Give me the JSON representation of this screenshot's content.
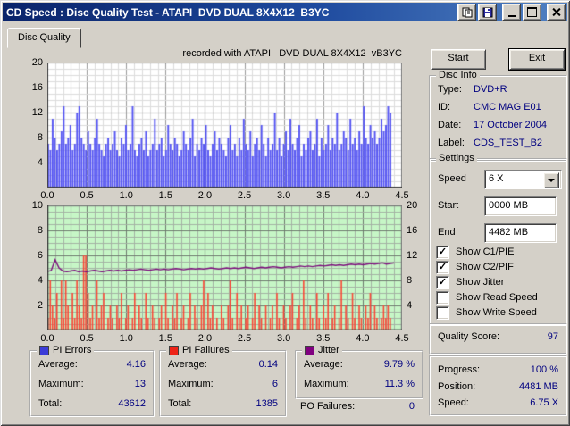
{
  "window": {
    "title": "CD Speed : Disc Quality Test - ATAPI  DVD DUAL 8X4X12  B3YC"
  },
  "tab": {
    "label": "Disc Quality"
  },
  "chart_header": "recorded with ATAPI   DVD DUAL 8X4X12  vB3YC",
  "buttons": {
    "start": "Start",
    "exit": "Exit"
  },
  "disc_info": {
    "title": "Disc Info",
    "rows": [
      {
        "label": "Type:",
        "value": "DVD+R"
      },
      {
        "label": "ID:",
        "value": "CMC MAG E01"
      },
      {
        "label": "Date:",
        "value": "17 October 2004"
      },
      {
        "label": "Label:",
        "value": "CDS_TEST_B2"
      }
    ]
  },
  "settings": {
    "title": "Settings",
    "speed_label": "Speed",
    "speed_value": "6 X",
    "start_label": "Start",
    "start_value": "0000 MB",
    "end_label": "End",
    "end_value": "4482 MB",
    "checkboxes": [
      {
        "label": "Show C1/PIE",
        "checked": true
      },
      {
        "label": "Show C2/PIF",
        "checked": true
      },
      {
        "label": "Show Jitter",
        "checked": true
      },
      {
        "label": "Show Read Speed",
        "checked": false
      },
      {
        "label": "Show Write Speed",
        "checked": false
      }
    ]
  },
  "quality": {
    "label": "Quality Score:",
    "value": "97"
  },
  "status": {
    "rows": [
      {
        "label": "Progress:",
        "value": "100 %"
      },
      {
        "label": "Position:",
        "value": "4481 MB"
      },
      {
        "label": "Speed:",
        "value": "6.75 X"
      }
    ]
  },
  "legends": {
    "pi_errors": {
      "title": "PI Errors",
      "swatch_color": "#3c3cd8",
      "rows": [
        {
          "label": "Average:",
          "value": "4.16"
        },
        {
          "label": "Maximum:",
          "value": "13"
        },
        {
          "label": "Total:",
          "value": "43612"
        }
      ]
    },
    "pi_failures": {
      "title": "PI Failures",
      "swatch_color": "#ee2418",
      "rows": [
        {
          "label": "Average:",
          "value": "0.14"
        },
        {
          "label": "Maximum:",
          "value": "6"
        },
        {
          "label": "Total:",
          "value": "1385"
        }
      ]
    },
    "jitter": {
      "title": "Jitter",
      "swatch_color": "#800080",
      "rows": [
        {
          "label": "Average:",
          "value": "9.79 %"
        },
        {
          "label": "Maximum:",
          "value": "11.3 %"
        }
      ]
    }
  },
  "po_failures": {
    "label": "PO Failures:",
    "value": "0"
  },
  "chart_data": [
    {
      "type": "bar",
      "title": "PI Errors (C1/PIE) vs disc capacity (GB)",
      "x_range": [
        0,
        4.5
      ],
      "y_range": [
        0,
        20
      ],
      "x_data_end": 4.37,
      "grid": "on",
      "bg_color": "#ffffff",
      "bar_color": "#5353f2",
      "xticks": [
        "0.0",
        "0.5",
        "1.0",
        "1.5",
        "2.0",
        "2.5",
        "3.0",
        "3.5",
        "4.0",
        "4.5"
      ],
      "yticks": [
        "20",
        "16",
        "12",
        "8",
        "4"
      ],
      "values": [
        7,
        6,
        11,
        8,
        6,
        7,
        9,
        13,
        7,
        8,
        10,
        6,
        7,
        12,
        13,
        8,
        7,
        6,
        9,
        7,
        6,
        8,
        11,
        7,
        6,
        5,
        7,
        8,
        6,
        7,
        9,
        6,
        5,
        8,
        7,
        10,
        6,
        7,
        13,
        6,
        5,
        7,
        8,
        6,
        9,
        5,
        6,
        7,
        11,
        6,
        7,
        8,
        5,
        6,
        10,
        7,
        6,
        8,
        7,
        5,
        6,
        9,
        7,
        6,
        8,
        11,
        5,
        7,
        6,
        8,
        7,
        10,
        6,
        5,
        7,
        9,
        6,
        8,
        7,
        6,
        5,
        8,
        10,
        6,
        7,
        5,
        8,
        6,
        11,
        7,
        6,
        9,
        5,
        7,
        8,
        6,
        10,
        7,
        5,
        8,
        6,
        7,
        12,
        6,
        8,
        5,
        7,
        9,
        6,
        11,
        7,
        6,
        8,
        10,
        5,
        7,
        6,
        8,
        9,
        6,
        7,
        11,
        5,
        8,
        6,
        7,
        10,
        6,
        8,
        7,
        12,
        6,
        7,
        9,
        8,
        6,
        11,
        7,
        8,
        6,
        9,
        7,
        13,
        8,
        7,
        10,
        8,
        9,
        7,
        8,
        11,
        9,
        10,
        13,
        12
      ]
    },
    {
      "type": "bar+line",
      "title": "PI Failures (C2/PIF) and Jitter vs disc capacity (GB)",
      "x_range": [
        0,
        4.5
      ],
      "left_y_range": [
        0,
        10
      ],
      "right_y_range": [
        0,
        20
      ],
      "x_data_end": 4.37,
      "grid": "on",
      "bg_color": "#c6f6c6",
      "xticks": [
        "0.0",
        "0.5",
        "1.0",
        "1.5",
        "2.0",
        "2.5",
        "3.0",
        "3.5",
        "4.0",
        "4.5"
      ],
      "left_yticks": [
        "10",
        "8",
        "6",
        "4",
        "2"
      ],
      "right_yticks": [
        "20",
        "16",
        "12",
        "8",
        "4"
      ],
      "series": [
        {
          "name": "PI Failures",
          "type": "bar",
          "axis": "left",
          "color": "#fb4636",
          "values": [
            1,
            4,
            2,
            1,
            3,
            0,
            4,
            1,
            4,
            2,
            0,
            3,
            1,
            4,
            2,
            1,
            6,
            6,
            3,
            1,
            2,
            0,
            4,
            1,
            2,
            3,
            0,
            1,
            2,
            1,
            0,
            2,
            1,
            3,
            0,
            1,
            2,
            0,
            1,
            3,
            0,
            2,
            1,
            0,
            3,
            1,
            0,
            2,
            1,
            0,
            1,
            2,
            0,
            3,
            1,
            0,
            2,
            1,
            3,
            0,
            1,
            2,
            0,
            1,
            3,
            0,
            2,
            1,
            0,
            2,
            4,
            0,
            3,
            1,
            2,
            0,
            1,
            0,
            2,
            1,
            0,
            2,
            4,
            1,
            0,
            3,
            1,
            2,
            0,
            1,
            2,
            0,
            1,
            3,
            0,
            2,
            1,
            0,
            2,
            0,
            1,
            2,
            0,
            3,
            1,
            0,
            2,
            1,
            0,
            2,
            3,
            0,
            1,
            2,
            0,
            4,
            1,
            0,
            2,
            1,
            0,
            3,
            1,
            0,
            2,
            1,
            3,
            0,
            1,
            2,
            0,
            1,
            4,
            0,
            2,
            1,
            0,
            3,
            1,
            0,
            2,
            1,
            0,
            2,
            1,
            3,
            0,
            2,
            1,
            0,
            1,
            2,
            1,
            2,
            1
          ]
        },
        {
          "name": "Jitter",
          "type": "line",
          "axis": "right",
          "color": "#7c0a7c",
          "values": [
            9.4,
            9.6,
            11.3,
            10.0,
            9.5,
            9.4,
            9.5,
            9.6,
            9.4,
            9.5,
            9.4,
            9.5,
            9.6,
            9.5,
            9.4,
            9.5,
            9.6,
            9.5,
            9.6,
            9.5,
            9.6,
            9.7,
            9.6,
            9.7,
            9.8,
            9.7,
            9.6,
            9.7,
            9.8,
            9.7,
            9.8,
            9.7,
            9.8,
            9.9,
            9.8,
            9.7,
            9.8,
            9.9,
            9.8,
            9.9,
            9.8,
            9.9,
            10.0,
            9.9,
            9.8,
            9.9,
            10.0,
            9.9,
            10.0,
            9.9,
            10.0,
            10.1,
            10.0,
            9.9,
            10.0,
            10.1,
            10.0,
            10.1,
            10.2,
            10.1,
            10.0,
            10.1,
            10.2,
            10.1,
            10.2,
            10.3,
            10.2,
            10.3,
            10.2,
            10.3,
            10.4,
            10.3,
            10.4,
            10.5,
            10.4,
            10.5,
            10.4,
            10.5,
            10.6,
            10.5,
            10.6,
            10.5,
            10.6,
            10.7,
            10.6,
            10.7,
            10.8,
            10.6,
            10.7,
            10.8
          ]
        }
      ]
    }
  ]
}
